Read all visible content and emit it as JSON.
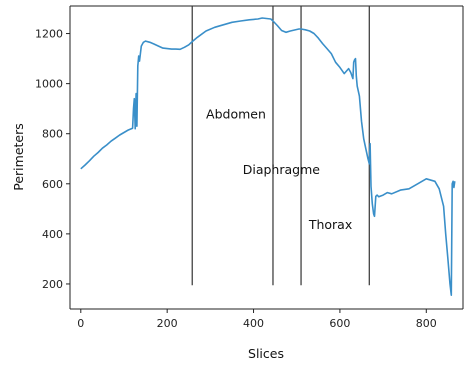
{
  "chart_data": {
    "type": "line",
    "title": "",
    "xlabel": "Slices",
    "ylabel": "Perimeters",
    "xlim": [
      -25,
      885
    ],
    "ylim": [
      100,
      1310
    ],
    "xticks": [
      0,
      200,
      400,
      600,
      800
    ],
    "yticks": [
      200,
      400,
      600,
      800,
      1000,
      1200
    ],
    "grid": false,
    "legend": "none",
    "line_color": "#3a8fc9",
    "boundary_color": "#333333",
    "series": [
      {
        "x": [
          0,
          10,
          20,
          30,
          40,
          50,
          60,
          70,
          80,
          90,
          100,
          110,
          120,
          122,
          124,
          126,
          128,
          130,
          132,
          134,
          136,
          138,
          140,
          145,
          150,
          160,
          170,
          180,
          190,
          200,
          210,
          220,
          230,
          240,
          250,
          258,
          270,
          290,
          310,
          330,
          350,
          370,
          390,
          410,
          420,
          430,
          440,
          445,
          455,
          465,
          475,
          485,
          495,
          505,
          510,
          520,
          530,
          540,
          550,
          560,
          570,
          580,
          590,
          600,
          610,
          620,
          625,
          630,
          632,
          634,
          636,
          638,
          640,
          645,
          650,
          655,
          660,
          665,
          668,
          670,
          672,
          675,
          678,
          680,
          683,
          686,
          690,
          700,
          710,
          720,
          740,
          760,
          780,
          800,
          820,
          830,
          840,
          845,
          850,
          855,
          858,
          860,
          862,
          864,
          866
        ],
        "values": [
          660,
          675,
          692,
          710,
          725,
          742,
          755,
          770,
          782,
          795,
          805,
          815,
          822,
          900,
          940,
          820,
          960,
          830,
          1070,
          1110,
          1090,
          1120,
          1150,
          1165,
          1170,
          1165,
          1158,
          1150,
          1142,
          1140,
          1138,
          1138,
          1137,
          1145,
          1155,
          1168,
          1185,
          1210,
          1225,
          1235,
          1245,
          1250,
          1255,
          1258,
          1262,
          1260,
          1258,
          1250,
          1232,
          1212,
          1205,
          1210,
          1214,
          1218,
          1218,
          1215,
          1210,
          1200,
          1182,
          1160,
          1140,
          1120,
          1085,
          1065,
          1040,
          1060,
          1045,
          1020,
          1085,
          1095,
          1100,
          1030,
          990,
          950,
          850,
          780,
          740,
          700,
          680,
          760,
          590,
          520,
          480,
          470,
          550,
          555,
          548,
          555,
          565,
          560,
          575,
          580,
          600,
          620,
          610,
          580,
          510,
          400,
          300,
          200,
          155,
          600,
          610,
          585,
          610
        ]
      }
    ],
    "boundaries": [
      258,
      445,
      510,
      668
    ],
    "boundary_ylim": [
      195,
      1310
    ],
    "annotations": [
      {
        "text": "Abdomen",
        "x": 290,
        "y": 860
      },
      {
        "text": "Diaphragme",
        "x": 375,
        "y": 640
      },
      {
        "text": "Thorax",
        "x": 528,
        "y": 420
      }
    ]
  }
}
